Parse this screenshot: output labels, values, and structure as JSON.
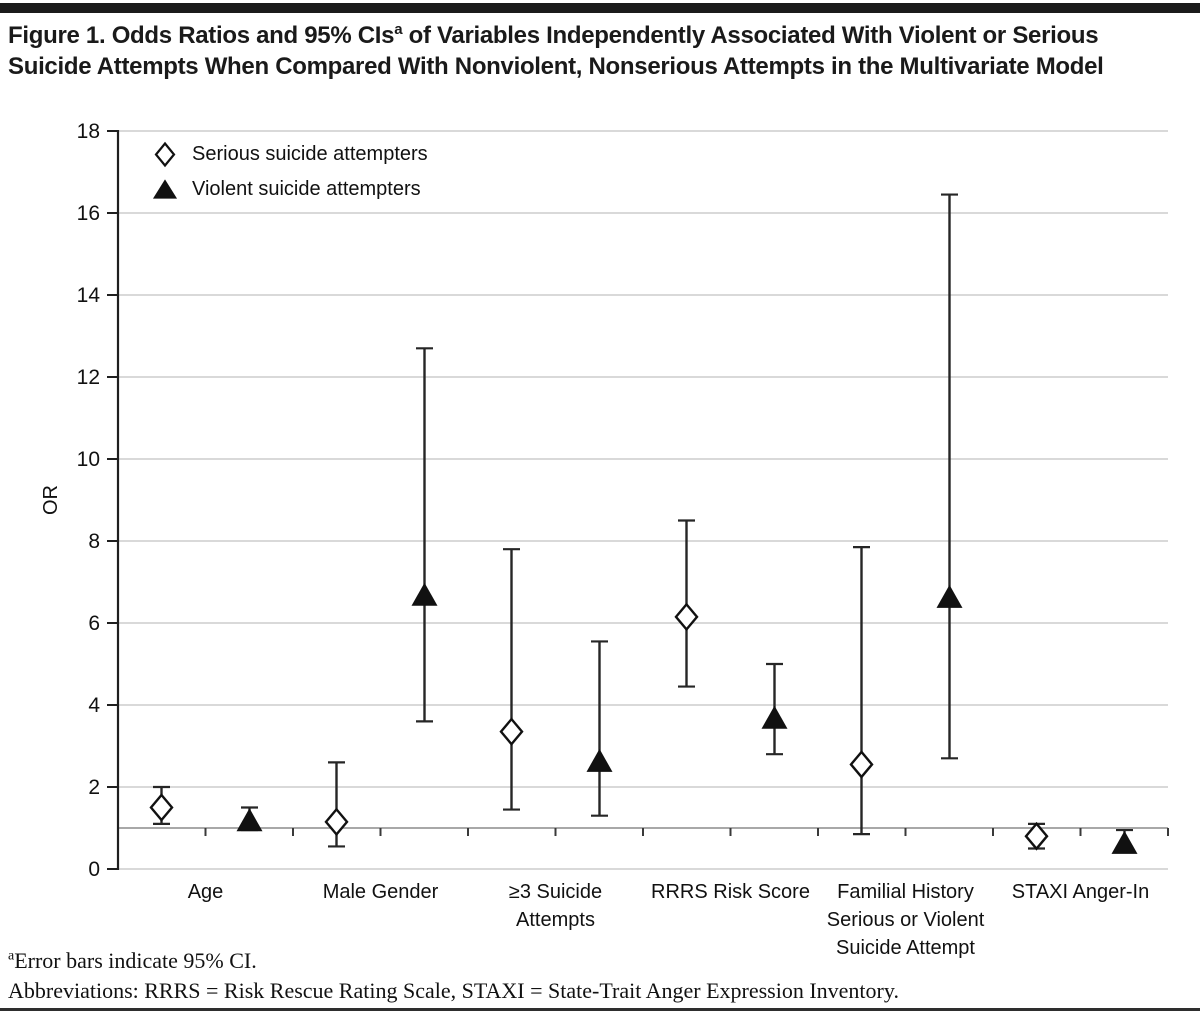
{
  "figure": {
    "title_pre": "Figure 1. Odds Ratios and 95% CIs",
    "title_sup": "a",
    "title_post": " of Variables Independently Associated With Violent or Serious Suicide Attempts When Compared With Nonviolent, Nonserious Attempts in the Multivariate Model",
    "footnote1_sup": "a",
    "footnote1_text": "Error bars indicate 95% CI.",
    "footnote2_text": "Abbreviations: RRRS = Risk Rescue Rating Scale, STAXI = State-Trait Anger Expression Inventory."
  },
  "legend": {
    "position": "top-left inside plot",
    "items": [
      {
        "marker": "open-diamond",
        "label": "Serious suicide attempters"
      },
      {
        "marker": "filled-triangle",
        "label": "Violent suicide attempters"
      }
    ]
  },
  "chart_data": {
    "type": "scatter",
    "subtype": "error-bar-plot (odds ratios with 95% CI whiskers)",
    "title": "Odds Ratios and 95% CIs of Variables Independently Associated With Violent or Serious Suicide Attempts When Compared With Nonviolent, Nonserious Attempts in the Multivariate Model",
    "xlabel": "",
    "ylabel": "OR",
    "ylim": [
      0,
      18
    ],
    "yticks": [
      0,
      2,
      4,
      6,
      8,
      10,
      12,
      14,
      16,
      18
    ],
    "reference_line_y": 1,
    "grid": "light horizontal gridlines at every y tick; darker reference line at OR = 1 with minor ticks every half category",
    "legend_position": "upper left",
    "categories": [
      "Age",
      "Male Gender",
      "≥3 Suicide Attempts",
      "RRRS Risk Score",
      "Familial History Serious or Violent Suicide Attempt",
      "STAXI Anger-In"
    ],
    "category_label_lines": [
      [
        "Age"
      ],
      [
        "Male Gender"
      ],
      [
        "≥3 Suicide",
        "Attempts"
      ],
      [
        "RRRS Risk Score"
      ],
      [
        "Familial History",
        "Serious or Violent",
        "Suicide Attempt"
      ],
      [
        "STAXI Anger-In"
      ]
    ],
    "series": [
      {
        "name": "Serious suicide attempters",
        "marker": "open-diamond",
        "or": [
          1.5,
          1.15,
          3.35,
          6.15,
          2.55,
          0.8
        ],
        "ci_low": [
          1.1,
          0.55,
          1.45,
          4.45,
          0.85,
          0.5
        ],
        "ci_high": [
          2.0,
          2.6,
          7.8,
          8.5,
          7.85,
          1.1
        ]
      },
      {
        "name": "Violent suicide attempters",
        "marker": "filled-triangle",
        "or": [
          1.2,
          6.7,
          2.65,
          3.7,
          6.65,
          0.65
        ],
        "ci_low": [
          0.95,
          3.6,
          1.3,
          2.8,
          2.7,
          0.45
        ],
        "ci_high": [
          1.5,
          12.7,
          5.55,
          5.0,
          16.45,
          0.95
        ]
      }
    ]
  },
  "colors": {
    "text": "#111111",
    "title_text": "#1a1a1a",
    "top_rule": "#1b1b1b",
    "bottom_rule": "#2e2e2e",
    "axis": "#1f1f1f",
    "gridline": "#b3b3b3",
    "reference_line": "#8c8c8c",
    "error_bar": "#262626",
    "marker_fill_open": "#ffffff",
    "marker_fill_solid": "#111111"
  }
}
